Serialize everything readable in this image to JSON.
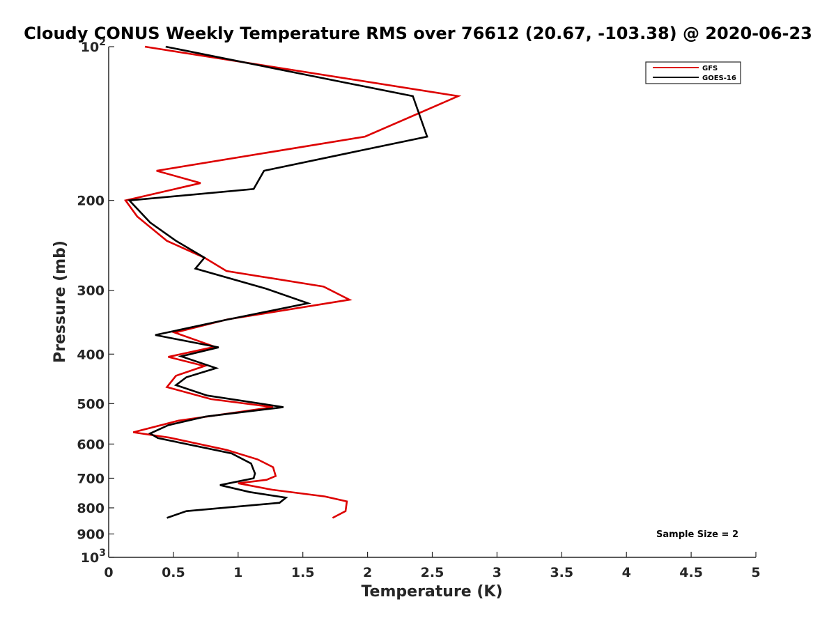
{
  "chart_data": {
    "type": "line",
    "title": "Cloudy CONUS Weekly Temperature RMS over 76612 (20.67, -103.38) @ 2020-06-23",
    "xlabel": "Temperature (K)",
    "ylabel": "Pressure (mb)",
    "xlim": [
      0,
      5
    ],
    "ylim": [
      100,
      1000
    ],
    "yscale": "log",
    "y_reversed": true,
    "x_ticks": [
      {
        "value": 0,
        "label": "0"
      },
      {
        "value": 0.5,
        "label": "0.5"
      },
      {
        "value": 1,
        "label": "1"
      },
      {
        "value": 1.5,
        "label": "1.5"
      },
      {
        "value": 2,
        "label": "2"
      },
      {
        "value": 2.5,
        "label": "2.5"
      },
      {
        "value": 3,
        "label": "3"
      },
      {
        "value": 3.5,
        "label": "3.5"
      },
      {
        "value": 4,
        "label": "4"
      },
      {
        "value": 4.5,
        "label": "4.5"
      },
      {
        "value": 5,
        "label": "5"
      }
    ],
    "y_ticks": [
      {
        "value": 100,
        "label": "10",
        "sup": "2"
      },
      {
        "value": 200,
        "label": "200"
      },
      {
        "value": 300,
        "label": "300"
      },
      {
        "value": 400,
        "label": "400"
      },
      {
        "value": 500,
        "label": "500"
      },
      {
        "value": 600,
        "label": "600"
      },
      {
        "value": 700,
        "label": "700"
      },
      {
        "value": 800,
        "label": "800"
      },
      {
        "value": 900,
        "label": "900"
      },
      {
        "value": 1000,
        "label": "10",
        "sup": "3"
      }
    ],
    "legend_position": "top-right",
    "annotation": "Sample Size = 2",
    "series": [
      {
        "name": "GFS",
        "color": "#dd0000",
        "points": [
          [
            0.28,
            100
          ],
          [
            2.7,
            125
          ],
          [
            1.98,
            150
          ],
          [
            0.37,
            175
          ],
          [
            0.71,
            185
          ],
          [
            0.13,
            200
          ],
          [
            0.22,
            215
          ],
          [
            0.45,
            240
          ],
          [
            0.74,
            259
          ],
          [
            0.91,
            275
          ],
          [
            1.66,
            295
          ],
          [
            1.86,
            313
          ],
          [
            0.92,
            342
          ],
          [
            0.51,
            363
          ],
          [
            0.82,
            387
          ],
          [
            0.46,
            405
          ],
          [
            0.74,
            422
          ],
          [
            0.52,
            441
          ],
          [
            0.45,
            464
          ],
          [
            0.79,
            490
          ],
          [
            1.27,
            508
          ],
          [
            0.54,
            540
          ],
          [
            0.19,
            569
          ],
          [
            0.47,
            583
          ],
          [
            0.91,
            616
          ],
          [
            1.15,
            643
          ],
          [
            1.27,
            666
          ],
          [
            1.29,
            693
          ],
          [
            1.22,
            705
          ],
          [
            1.0,
            716
          ],
          [
            1.26,
            737
          ],
          [
            1.67,
            760
          ],
          [
            1.84,
            777
          ],
          [
            1.83,
            812
          ],
          [
            1.73,
            837
          ]
        ]
      },
      {
        "name": "GOES-16",
        "color": "#000000",
        "points": [
          [
            0.44,
            100
          ],
          [
            2.35,
            125
          ],
          [
            2.46,
            150
          ],
          [
            1.2,
            175
          ],
          [
            1.12,
            190
          ],
          [
            0.16,
            200
          ],
          [
            0.32,
            221
          ],
          [
            0.52,
            240
          ],
          [
            0.74,
            259
          ],
          [
            0.67,
            272
          ],
          [
            1.22,
            298
          ],
          [
            1.54,
            318
          ],
          [
            0.9,
            343
          ],
          [
            0.36,
            367
          ],
          [
            0.85,
            388
          ],
          [
            0.56,
            404
          ],
          [
            0.83,
            426
          ],
          [
            0.6,
            444
          ],
          [
            0.52,
            460
          ],
          [
            0.76,
            482
          ],
          [
            1.35,
            508
          ],
          [
            0.75,
            530
          ],
          [
            0.46,
            551
          ],
          [
            0.32,
            572
          ],
          [
            0.38,
            584
          ],
          [
            0.95,
            626
          ],
          [
            1.1,
            655
          ],
          [
            1.13,
            685
          ],
          [
            1.12,
            700
          ],
          [
            0.86,
            722
          ],
          [
            1.09,
            745
          ],
          [
            1.37,
            764
          ],
          [
            1.32,
            782
          ],
          [
            0.6,
            812
          ],
          [
            0.45,
            837
          ]
        ]
      }
    ]
  }
}
